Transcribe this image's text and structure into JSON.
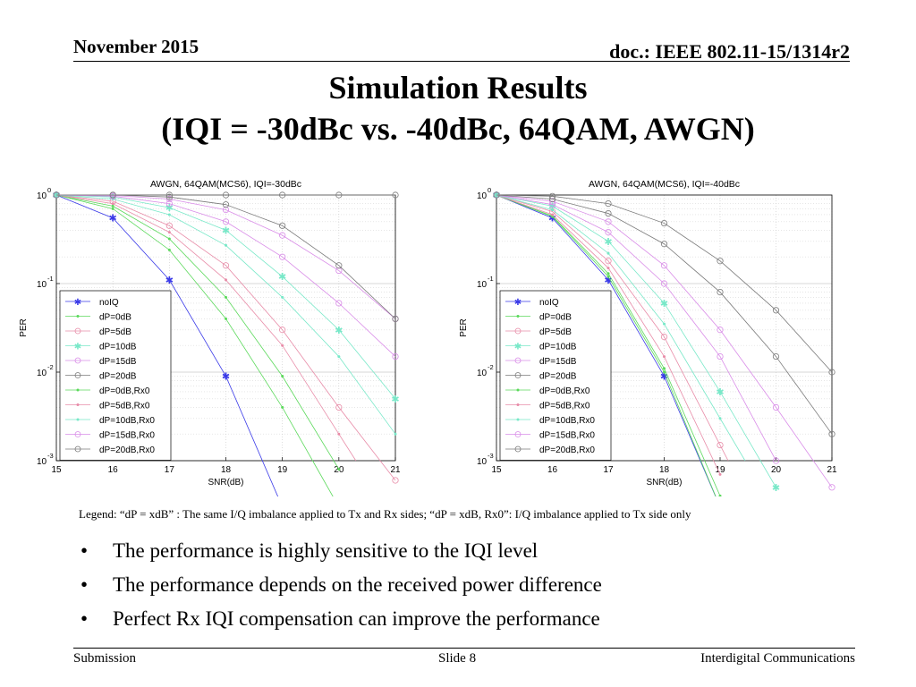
{
  "header": {
    "date": "November 2015",
    "doc": "doc.: IEEE 802.11-15/1314r2"
  },
  "title": {
    "line1": "Simulation Results",
    "line2": "(IQI = -30dBc vs. -40dBc, 64QAM, AWGN)"
  },
  "legend_note": "Legend:  “dP = xdB” : The same I/Q imbalance applied to Tx and Rx sides;  “dP = xdB, Rx0”: I/Q imbalance applied to Tx side only",
  "bullets": [
    "The performance is highly sensitive to the IQI level",
    "The performance depends on the received power difference",
    "Perfect Rx IQI compensation can improve the performance"
  ],
  "footer": {
    "left": "Submission",
    "center": "Slide 8",
    "right": "Interdigital Communications"
  },
  "colors": {
    "noIQ": "#3a3ae8",
    "dP=0dB": "#5bd95b",
    "dP=5dB": "#e88ca8",
    "dP=10dB": "#78e8c8",
    "dP=15dB": "#d98ce8",
    "dP=20dB": "#7a7a7a"
  },
  "chart_data": [
    {
      "type": "line",
      "title": "AWGN, 64QAM(MCS6), IQI=-30dBc",
      "xlabel": "SNR(dB)",
      "ylabel": "PER",
      "xlim": [
        15,
        21
      ],
      "ylim": [
        0.001,
        1
      ],
      "yscale": "log",
      "grid": true,
      "legend_position": "bottom-left",
      "x_ticks": [
        "15",
        "16",
        "17",
        "18",
        "19",
        "20",
        "21"
      ],
      "y_ticks": [
        {
          "base": "10",
          "exp": "-3"
        },
        {
          "base": "10",
          "exp": "-2"
        },
        {
          "base": "10",
          "exp": "-1"
        },
        {
          "base": "10",
          "exp": "0"
        }
      ],
      "x": [
        15,
        16,
        17,
        18,
        19,
        20,
        21
      ],
      "series": [
        {
          "name": "noIQ",
          "marker": "star",
          "values": [
            1.0,
            0.55,
            0.11,
            0.009,
            0.0003,
            null,
            null
          ]
        },
        {
          "name": "dP=0dB",
          "marker": "dot",
          "values": [
            1.0,
            0.75,
            0.32,
            0.07,
            0.009,
            0.0008,
            null
          ]
        },
        {
          "name": "dP=5dB",
          "marker": "circle",
          "values": [
            1.0,
            0.85,
            0.45,
            0.16,
            0.03,
            0.004,
            0.0006
          ]
        },
        {
          "name": "dP=10dB",
          "marker": "star",
          "values": [
            1.0,
            0.95,
            0.72,
            0.4,
            0.12,
            0.03,
            0.005
          ]
        },
        {
          "name": "dP=15dB",
          "marker": "circle",
          "values": [
            1.0,
            0.99,
            0.9,
            0.68,
            0.35,
            0.14,
            0.04
          ]
        },
        {
          "name": "dP=20dB",
          "marker": "circle",
          "values": [
            1.0,
            1.0,
            1.0,
            1.0,
            1.0,
            1.0,
            1.0
          ]
        },
        {
          "name": "dP=0dB,Rx0",
          "marker": "dot",
          "values": [
            1.0,
            0.7,
            0.24,
            0.04,
            0.004,
            0.0003,
            null
          ]
        },
        {
          "name": "dP=5dB,Rx0",
          "marker": "dot",
          "values": [
            1.0,
            0.8,
            0.38,
            0.11,
            0.02,
            0.002,
            null
          ]
        },
        {
          "name": "dP=10dB,Rx0",
          "marker": "dot",
          "values": [
            1.0,
            0.9,
            0.6,
            0.27,
            0.07,
            0.015,
            0.002
          ]
        },
        {
          "name": "dP=15dB,Rx0",
          "marker": "circle",
          "values": [
            1.0,
            0.97,
            0.8,
            0.5,
            0.2,
            0.06,
            0.015
          ]
        },
        {
          "name": "dP=20dB,Rx0",
          "marker": "circle",
          "values": [
            1.0,
            1.0,
            0.95,
            0.78,
            0.45,
            0.16,
            0.04
          ]
        }
      ]
    },
    {
      "type": "line",
      "title": "AWGN, 64QAM(MCS6), IQI=-40dBc",
      "xlabel": "SNR(dB)",
      "ylabel": "PER",
      "xlim": [
        15,
        21
      ],
      "ylim": [
        0.001,
        1
      ],
      "yscale": "log",
      "grid": true,
      "legend_position": "bottom-left",
      "x_ticks": [
        "15",
        "16",
        "17",
        "18",
        "19",
        "20",
        "21"
      ],
      "y_ticks": [
        {
          "base": "10",
          "exp": "-3"
        },
        {
          "base": "10",
          "exp": "-2"
        },
        {
          "base": "10",
          "exp": "-1"
        },
        {
          "base": "10",
          "exp": "0"
        }
      ],
      "x": [
        15,
        16,
        17,
        18,
        19,
        20,
        21
      ],
      "series": [
        {
          "name": "noIQ",
          "marker": "star",
          "values": [
            1.0,
            0.55,
            0.11,
            0.009,
            0.0003,
            null,
            null
          ]
        },
        {
          "name": "dP=0dB",
          "marker": "dot",
          "values": [
            1.0,
            0.58,
            0.13,
            0.011,
            0.0004,
            null,
            null
          ]
        },
        {
          "name": "dP=5dB",
          "marker": "circle",
          "values": [
            1.0,
            0.65,
            0.18,
            0.025,
            0.0015,
            null,
            null
          ]
        },
        {
          "name": "dP=10dB",
          "marker": "star",
          "values": [
            1.0,
            0.75,
            0.3,
            0.06,
            0.006,
            0.0005,
            null
          ]
        },
        {
          "name": "dP=15dB",
          "marker": "circle",
          "values": [
            1.0,
            0.85,
            0.5,
            0.16,
            0.03,
            0.004,
            0.0005
          ]
        },
        {
          "name": "dP=20dB",
          "marker": "circle",
          "values": [
            1.0,
            0.97,
            0.8,
            0.48,
            0.18,
            0.05,
            0.01
          ]
        },
        {
          "name": "dP=0dB,Rx0",
          "marker": "dot",
          "values": [
            1.0,
            0.57,
            0.12,
            0.01,
            0.0003,
            null,
            null
          ]
        },
        {
          "name": "dP=5dB,Rx0",
          "marker": "dot",
          "values": [
            1.0,
            0.6,
            0.15,
            0.015,
            0.0007,
            null,
            null
          ]
        },
        {
          "name": "dP=10dB,Rx0",
          "marker": "dot",
          "values": [
            1.0,
            0.68,
            0.22,
            0.035,
            0.003,
            null,
            null
          ]
        },
        {
          "name": "dP=15dB,Rx0",
          "marker": "circle",
          "values": [
            1.0,
            0.78,
            0.38,
            0.1,
            0.015,
            0.001,
            null
          ]
        },
        {
          "name": "dP=20dB,Rx0",
          "marker": "circle",
          "values": [
            1.0,
            0.9,
            0.62,
            0.28,
            0.08,
            0.015,
            0.002
          ]
        }
      ]
    }
  ]
}
